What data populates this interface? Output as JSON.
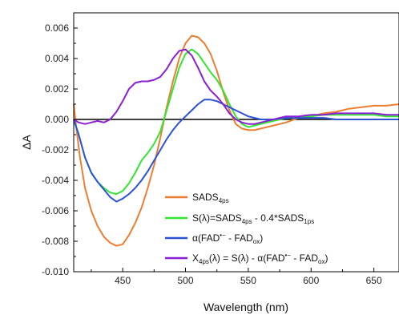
{
  "chart_data": {
    "type": "line",
    "title": "",
    "xlabel": "Wavelength (nm)",
    "ylabel": "ΔA",
    "xlim": [
      411,
      670
    ],
    "ylim": [
      -0.01,
      0.007
    ],
    "x_ticks": [
      450,
      500,
      550,
      600,
      650
    ],
    "x_tick_labels": [
      "450",
      "500",
      "550",
      "600",
      "650"
    ],
    "y_ticks": [
      -0.01,
      -0.008,
      -0.006,
      -0.004,
      -0.002,
      0.0,
      0.002,
      0.004,
      0.006
    ],
    "y_tick_labels": [
      "-0.010",
      "-0.008",
      "-0.006",
      "-0.004",
      "-0.002",
      "0.000",
      "0.002",
      "0.004",
      "0.006"
    ],
    "zero_line": true,
    "grid": false,
    "legend_position": "bottom-right",
    "series": [
      {
        "name": "SADS4ps",
        "legend": [
          {
            "t": "SADS"
          },
          {
            "t": "4ps",
            "sub": true
          }
        ],
        "color": "#ED7D31",
        "points": [
          [
            411,
            0.001
          ],
          [
            413,
            -0.0005
          ],
          [
            416,
            -0.0025
          ],
          [
            420,
            -0.0045
          ],
          [
            425,
            -0.006
          ],
          [
            430,
            -0.007
          ],
          [
            435,
            -0.0077
          ],
          [
            440,
            -0.0081
          ],
          [
            445,
            -0.0083
          ],
          [
            450,
            -0.0082
          ],
          [
            455,
            -0.0076
          ],
          [
            460,
            -0.0068
          ],
          [
            465,
            -0.0058
          ],
          [
            470,
            -0.0045
          ],
          [
            475,
            -0.003
          ],
          [
            480,
            -0.0012
          ],
          [
            485,
            0.0008
          ],
          [
            490,
            0.0025
          ],
          [
            495,
            0.004
          ],
          [
            500,
            0.005
          ],
          [
            505,
            0.0055
          ],
          [
            510,
            0.0054
          ],
          [
            515,
            0.005
          ],
          [
            520,
            0.0043
          ],
          [
            525,
            0.0032
          ],
          [
            530,
            0.0018
          ],
          [
            535,
            0.0006
          ],
          [
            540,
            -0.0003
          ],
          [
            545,
            -0.0006
          ],
          [
            550,
            -0.0007
          ],
          [
            555,
            -0.0007
          ],
          [
            560,
            -0.0006
          ],
          [
            570,
            -0.0004
          ],
          [
            580,
            -0.0002
          ],
          [
            590,
            0.0001
          ],
          [
            600,
            0.0002
          ],
          [
            610,
            0.0004
          ],
          [
            620,
            0.0005
          ],
          [
            630,
            0.0007
          ],
          [
            640,
            0.0008
          ],
          [
            650,
            0.0009
          ],
          [
            660,
            0.0009
          ],
          [
            670,
            0.001
          ]
        ]
      },
      {
        "name": "S(λ)=SADS4ps - 0.4*SADS1ps",
        "legend": [
          {
            "t": "S(λ)=SADS"
          },
          {
            "t": "4ps",
            "sub": true
          },
          {
            "t": " - 0.4*SADS"
          },
          {
            "t": "1ps",
            "sub": true
          }
        ],
        "color": "#32E632",
        "points": [
          [
            411,
            0.0
          ],
          [
            415,
            -0.001
          ],
          [
            420,
            -0.0025
          ],
          [
            425,
            -0.0035
          ],
          [
            430,
            -0.0041
          ],
          [
            435,
            -0.0045
          ],
          [
            440,
            -0.0048
          ],
          [
            445,
            -0.0049
          ],
          [
            450,
            -0.0047
          ],
          [
            455,
            -0.0042
          ],
          [
            460,
            -0.0035
          ],
          [
            465,
            -0.0027
          ],
          [
            470,
            -0.0022
          ],
          [
            475,
            -0.0016
          ],
          [
            480,
            -0.0008
          ],
          [
            485,
            0.0006
          ],
          [
            490,
            0.002
          ],
          [
            495,
            0.0034
          ],
          [
            500,
            0.0043
          ],
          [
            505,
            0.0046
          ],
          [
            510,
            0.0043
          ],
          [
            515,
            0.0037
          ],
          [
            520,
            0.0031
          ],
          [
            525,
            0.0026
          ],
          [
            530,
            0.0019
          ],
          [
            535,
            0.001
          ],
          [
            540,
            0.0002
          ],
          [
            545,
            -0.0003
          ],
          [
            550,
            -0.0005
          ],
          [
            555,
            -0.0004
          ],
          [
            560,
            -0.0003
          ],
          [
            570,
            -0.0001
          ],
          [
            580,
            0.0001
          ],
          [
            590,
            0.0001
          ],
          [
            600,
            0.0002
          ],
          [
            610,
            0.0003
          ],
          [
            620,
            0.0003
          ],
          [
            630,
            0.0003
          ],
          [
            640,
            0.0003
          ],
          [
            650,
            0.0003
          ],
          [
            660,
            0.0002
          ],
          [
            670,
            0.0002
          ]
        ]
      },
      {
        "name": "α(FAD•− - FADox)",
        "legend": [
          {
            "t": "α(FAD"
          },
          {
            "t": "•−",
            "sup": true
          },
          {
            "t": " - FAD"
          },
          {
            "t": "ox",
            "sub": true
          },
          {
            "t": ")"
          }
        ],
        "color": "#2D52D6",
        "points": [
          [
            411,
            0.0
          ],
          [
            415,
            -0.001
          ],
          [
            420,
            -0.0025
          ],
          [
            425,
            -0.0035
          ],
          [
            430,
            -0.0041
          ],
          [
            435,
            -0.0046
          ],
          [
            440,
            -0.0051
          ],
          [
            445,
            -0.0054
          ],
          [
            450,
            -0.0052
          ],
          [
            455,
            -0.0049
          ],
          [
            460,
            -0.0045
          ],
          [
            465,
            -0.004
          ],
          [
            470,
            -0.0034
          ],
          [
            475,
            -0.0027
          ],
          [
            480,
            -0.002
          ],
          [
            485,
            -0.0013
          ],
          [
            490,
            -0.0007
          ],
          [
            495,
            -0.0002
          ],
          [
            500,
            0.0002
          ],
          [
            505,
            0.0006
          ],
          [
            510,
            0.001
          ],
          [
            515,
            0.0013
          ],
          [
            520,
            0.0013
          ],
          [
            525,
            0.0012
          ],
          [
            530,
            0.001
          ],
          [
            535,
            0.0008
          ],
          [
            540,
            0.0006
          ],
          [
            545,
            0.0004
          ],
          [
            550,
            0.0002
          ],
          [
            555,
            0.0001
          ],
          [
            560,
            0.0
          ],
          [
            570,
            0.0
          ],
          [
            580,
            0.0001
          ],
          [
            590,
            0.0001
          ],
          [
            600,
            0.0001
          ],
          [
            610,
            0.0001
          ],
          [
            620,
            0.0
          ],
          [
            630,
            0.0
          ],
          [
            640,
            0.0
          ],
          [
            650,
            0.0
          ],
          [
            660,
            0.0
          ],
          [
            670,
            0.0
          ]
        ]
      },
      {
        "name": "X4ps(λ) = S(λ) - α(FAD•− - FADox)",
        "legend": [
          {
            "t": "X"
          },
          {
            "t": "4ps",
            "sub": true
          },
          {
            "t": "(λ) = S(λ) - α(FAD"
          },
          {
            "t": "•−",
            "sup": true
          },
          {
            "t": " - FAD"
          },
          {
            "t": "ox",
            "sub": true
          },
          {
            "t": ")"
          }
        ],
        "color": "#8B1FD4",
        "points": [
          [
            411,
            0.0
          ],
          [
            415,
            -0.0002
          ],
          [
            420,
            -0.0003
          ],
          [
            425,
            -0.0002
          ],
          [
            430,
            -0.0001
          ],
          [
            435,
            -0.0002
          ],
          [
            440,
            0.0
          ],
          [
            445,
            0.0005
          ],
          [
            450,
            0.0012
          ],
          [
            455,
            0.002
          ],
          [
            460,
            0.0024
          ],
          [
            465,
            0.0025
          ],
          [
            470,
            0.0025
          ],
          [
            475,
            0.0026
          ],
          [
            480,
            0.0028
          ],
          [
            485,
            0.0033
          ],
          [
            490,
            0.004
          ],
          [
            495,
            0.0045
          ],
          [
            500,
            0.0046
          ],
          [
            505,
            0.0042
          ],
          [
            510,
            0.0034
          ],
          [
            515,
            0.0025
          ],
          [
            520,
            0.0019
          ],
          [
            525,
            0.0015
          ],
          [
            530,
            0.001
          ],
          [
            535,
            0.0004
          ],
          [
            540,
            0.0
          ],
          [
            545,
            -0.0002
          ],
          [
            550,
            -0.0003
          ],
          [
            555,
            -0.0003
          ],
          [
            560,
            -0.0002
          ],
          [
            570,
            0.0
          ],
          [
            580,
            0.0002
          ],
          [
            590,
            0.0002
          ],
          [
            600,
            0.0003
          ],
          [
            610,
            0.0003
          ],
          [
            620,
            0.0004
          ],
          [
            630,
            0.0004
          ],
          [
            640,
            0.0004
          ],
          [
            650,
            0.0004
          ],
          [
            660,
            0.0003
          ],
          [
            670,
            0.0003
          ]
        ]
      }
    ]
  }
}
